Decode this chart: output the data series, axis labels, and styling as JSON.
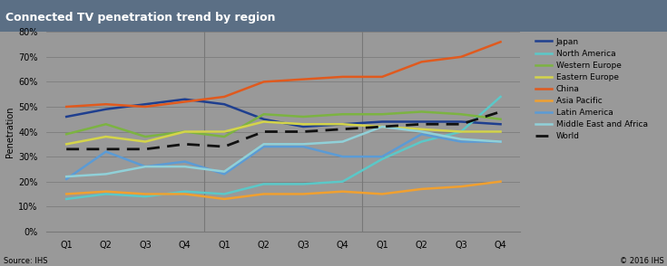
{
  "title": "Connected TV penetration trend by region",
  "ylabel": "Penetration",
  "source_left": "Source: IHS",
  "source_right": "© 2016 IHS",
  "title_bar_color": "#5b6f85",
  "background_color": "#999999",
  "plot_bg_color": "#999999",
  "ylim": [
    0,
    80
  ],
  "yticks": [
    0,
    10,
    20,
    30,
    40,
    50,
    60,
    70,
    80
  ],
  "quarters": [
    "Q1",
    "Q2",
    "Q3",
    "Q4",
    "Q1",
    "Q2",
    "Q3",
    "Q4",
    "Q1",
    "Q2",
    "Q3",
    "Q4"
  ],
  "series": [
    {
      "name": "Japan",
      "color": "#1f3f8f",
      "linestyle": "-",
      "linewidth": 1.8,
      "values": [
        46,
        49,
        51,
        53,
        51,
        45,
        42,
        43,
        44,
        44,
        44,
        43
      ]
    },
    {
      "name": "North America",
      "color": "#5bc8c8",
      "linestyle": "-",
      "linewidth": 1.8,
      "values": [
        13,
        15,
        14,
        16,
        15,
        19,
        19,
        20,
        29,
        36,
        40,
        54
      ]
    },
    {
      "name": "Western Europe",
      "color": "#7cb342",
      "linestyle": "-",
      "linewidth": 1.8,
      "values": [
        39,
        43,
        38,
        40,
        38,
        47,
        46,
        47,
        47,
        48,
        47,
        45
      ]
    },
    {
      "name": "Eastern Europe",
      "color": "#d4d44a",
      "linestyle": "-",
      "linewidth": 1.8,
      "values": [
        35,
        38,
        36,
        40,
        40,
        44,
        43,
        43,
        42,
        41,
        40,
        40
      ]
    },
    {
      "name": "China",
      "color": "#e05a1e",
      "linestyle": "-",
      "linewidth": 1.8,
      "values": [
        50,
        51,
        50,
        52,
        54,
        60,
        61,
        62,
        62,
        68,
        70,
        76
      ]
    },
    {
      "name": "Asia Pacific",
      "color": "#f0a030",
      "linestyle": "-",
      "linewidth": 1.8,
      "values": [
        15,
        16,
        15,
        15,
        13,
        15,
        15,
        16,
        15,
        17,
        18,
        20
      ]
    },
    {
      "name": "Latin America",
      "color": "#5b9bd5",
      "linestyle": "-",
      "linewidth": 1.8,
      "values": [
        21,
        32,
        26,
        28,
        23,
        34,
        34,
        30,
        30,
        39,
        36,
        36
      ]
    },
    {
      "name": "Middle East and Africa",
      "color": "#90d0d8",
      "linestyle": "-",
      "linewidth": 1.8,
      "values": [
        22,
        23,
        26,
        26,
        24,
        35,
        35,
        36,
        42,
        40,
        37,
        36
      ]
    },
    {
      "name": "World",
      "color": "#111111",
      "linestyle": "--",
      "linewidth": 2.0,
      "dashes": [
        5,
        3
      ],
      "values": [
        33,
        33,
        33,
        35,
        34,
        40,
        40,
        41,
        42,
        43,
        43,
        48
      ]
    }
  ]
}
